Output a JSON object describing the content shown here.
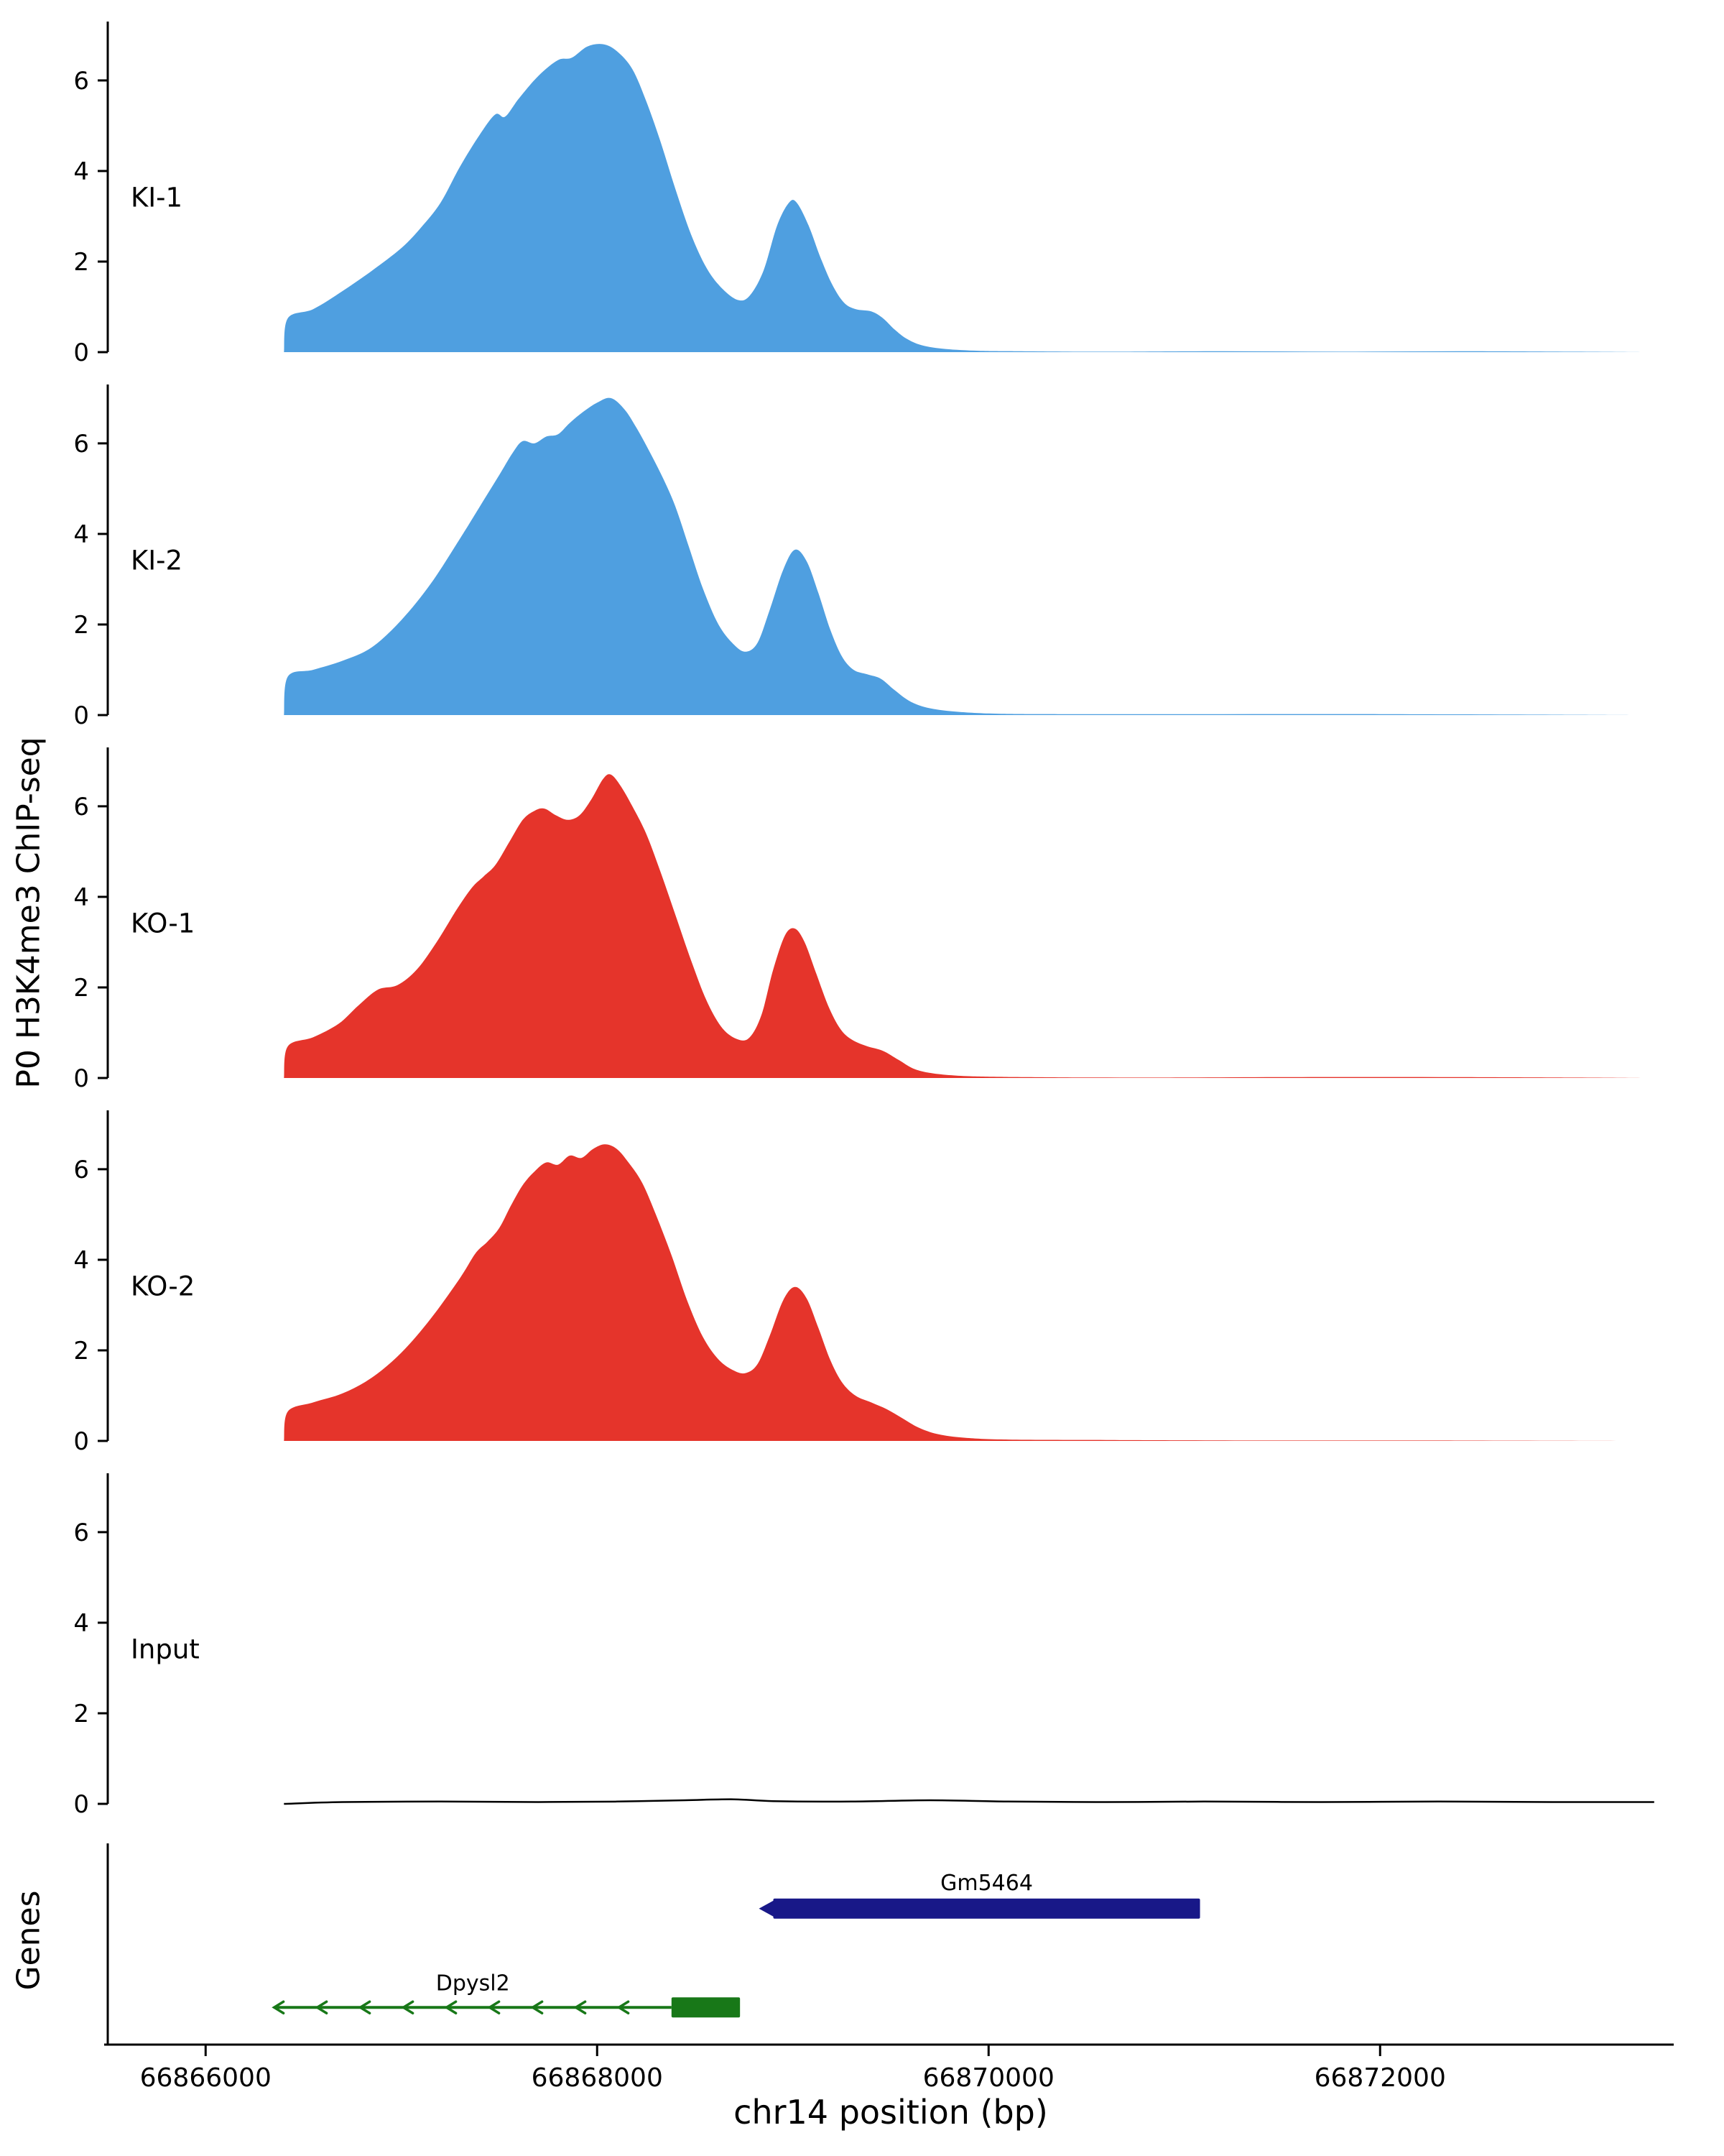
{
  "figure": {
    "ylabel": "P0 H3K4me3 ChIP-seq",
    "genes_label": "Genes",
    "xlabel": "chr14 position (bp)"
  },
  "chart_data": {
    "type": "area",
    "title": "",
    "xlabel": "chr14 position (bp)",
    "ylabel": "P0 H3K4me3 ChIP-seq",
    "x_range": [
      66865500,
      66873500
    ],
    "x_ticks": [
      66866000,
      66868000,
      66870000,
      66872000
    ],
    "y_range": [
      0,
      7.3
    ],
    "y_ticks": [
      0,
      2,
      4,
      6
    ],
    "grid": false,
    "tracks": [
      {
        "label": "KI-1",
        "color": "#4f9fe0",
        "style": "area",
        "points": [
          [
            66866400,
            0.0
          ],
          [
            66866420,
            0.75
          ],
          [
            66866550,
            0.95
          ],
          [
            66866700,
            1.35
          ],
          [
            66866850,
            1.8
          ],
          [
            66867000,
            2.3
          ],
          [
            66867100,
            2.75
          ],
          [
            66867200,
            3.3
          ],
          [
            66867300,
            4.1
          ],
          [
            66867400,
            4.8
          ],
          [
            66867480,
            5.25
          ],
          [
            66867530,
            5.2
          ],
          [
            66867600,
            5.6
          ],
          [
            66867700,
            6.1
          ],
          [
            66867800,
            6.45
          ],
          [
            66867870,
            6.5
          ],
          [
            66867950,
            6.75
          ],
          [
            66868030,
            6.8
          ],
          [
            66868100,
            6.65
          ],
          [
            66868180,
            6.25
          ],
          [
            66868250,
            5.55
          ],
          [
            66868320,
            4.7
          ],
          [
            66868400,
            3.6
          ],
          [
            66868480,
            2.6
          ],
          [
            66868560,
            1.85
          ],
          [
            66868640,
            1.4
          ],
          [
            66868720,
            1.15
          ],
          [
            66868780,
            1.25
          ],
          [
            66868850,
            1.8
          ],
          [
            66868920,
            2.8
          ],
          [
            66868980,
            3.3
          ],
          [
            66869020,
            3.3
          ],
          [
            66869080,
            2.8
          ],
          [
            66869140,
            2.1
          ],
          [
            66869200,
            1.5
          ],
          [
            66869260,
            1.1
          ],
          [
            66869320,
            0.95
          ],
          [
            66869400,
            0.9
          ],
          [
            66869460,
            0.75
          ],
          [
            66869520,
            0.5
          ],
          [
            66869580,
            0.3
          ],
          [
            66869660,
            0.15
          ],
          [
            66869780,
            0.07
          ],
          [
            66869950,
            0.03
          ],
          [
            66870150,
            0.02
          ],
          [
            66870600,
            0.01
          ],
          [
            66871200,
            0.02
          ],
          [
            66871800,
            0.01
          ],
          [
            66872400,
            0.02
          ],
          [
            66873000,
            0.01
          ],
          [
            66873350,
            0.0
          ]
        ]
      },
      {
        "label": "KI-2",
        "color": "#4f9fe0",
        "style": "area",
        "points": [
          [
            66866400,
            0.0
          ],
          [
            66866420,
            0.85
          ],
          [
            66866550,
            1.0
          ],
          [
            66866700,
            1.2
          ],
          [
            66866850,
            1.5
          ],
          [
            66867000,
            2.1
          ],
          [
            66867150,
            2.9
          ],
          [
            66867300,
            3.9
          ],
          [
            66867400,
            4.6
          ],
          [
            66867500,
            5.3
          ],
          [
            66867570,
            5.8
          ],
          [
            66867620,
            6.05
          ],
          [
            66867680,
            6.0
          ],
          [
            66867740,
            6.15
          ],
          [
            66867800,
            6.2
          ],
          [
            66867860,
            6.45
          ],
          [
            66867930,
            6.7
          ],
          [
            66868000,
            6.9
          ],
          [
            66868070,
            7.0
          ],
          [
            66868140,
            6.75
          ],
          [
            66868200,
            6.35
          ],
          [
            66868270,
            5.8
          ],
          [
            66868340,
            5.2
          ],
          [
            66868400,
            4.6
          ],
          [
            66868470,
            3.7
          ],
          [
            66868540,
            2.8
          ],
          [
            66868620,
            2.0
          ],
          [
            66868700,
            1.55
          ],
          [
            66868760,
            1.4
          ],
          [
            66868820,
            1.6
          ],
          [
            66868880,
            2.3
          ],
          [
            66868950,
            3.2
          ],
          [
            66869010,
            3.65
          ],
          [
            66869070,
            3.4
          ],
          [
            66869130,
            2.7
          ],
          [
            66869190,
            1.9
          ],
          [
            66869250,
            1.3
          ],
          [
            66869310,
            1.0
          ],
          [
            66869380,
            0.9
          ],
          [
            66869450,
            0.8
          ],
          [
            66869520,
            0.55
          ],
          [
            66869600,
            0.3
          ],
          [
            66869700,
            0.15
          ],
          [
            66869850,
            0.07
          ],
          [
            66870050,
            0.03
          ],
          [
            66870400,
            0.02
          ],
          [
            66871200,
            0.02
          ],
          [
            66872000,
            0.02
          ],
          [
            66872800,
            0.01
          ],
          [
            66873350,
            0.0
          ]
        ]
      },
      {
        "label": "KO-1",
        "color": "#e5342b",
        "style": "area",
        "points": [
          [
            66866400,
            0.0
          ],
          [
            66866420,
            0.7
          ],
          [
            66866550,
            0.9
          ],
          [
            66866680,
            1.2
          ],
          [
            66866780,
            1.6
          ],
          [
            66866880,
            1.95
          ],
          [
            66866980,
            2.05
          ],
          [
            66867080,
            2.4
          ],
          [
            66867180,
            3.0
          ],
          [
            66867280,
            3.7
          ],
          [
            66867360,
            4.2
          ],
          [
            66867420,
            4.45
          ],
          [
            66867480,
            4.7
          ],
          [
            66867550,
            5.2
          ],
          [
            66867620,
            5.7
          ],
          [
            66867680,
            5.9
          ],
          [
            66867730,
            5.95
          ],
          [
            66867790,
            5.8
          ],
          [
            66867850,
            5.7
          ],
          [
            66867910,
            5.8
          ],
          [
            66867970,
            6.15
          ],
          [
            66868030,
            6.6
          ],
          [
            66868070,
            6.7
          ],
          [
            66868120,
            6.45
          ],
          [
            66868180,
            6.0
          ],
          [
            66868250,
            5.4
          ],
          [
            66868320,
            4.6
          ],
          [
            66868400,
            3.6
          ],
          [
            66868480,
            2.6
          ],
          [
            66868560,
            1.7
          ],
          [
            66868640,
            1.1
          ],
          [
            66868720,
            0.85
          ],
          [
            66868780,
            0.9
          ],
          [
            66868840,
            1.4
          ],
          [
            66868900,
            2.4
          ],
          [
            66868960,
            3.15
          ],
          [
            66869010,
            3.3
          ],
          [
            66869060,
            3.0
          ],
          [
            66869120,
            2.3
          ],
          [
            66869180,
            1.6
          ],
          [
            66869240,
            1.1
          ],
          [
            66869300,
            0.85
          ],
          [
            66869380,
            0.7
          ],
          [
            66869460,
            0.6
          ],
          [
            66869540,
            0.4
          ],
          [
            66869620,
            0.2
          ],
          [
            66869720,
            0.1
          ],
          [
            66869900,
            0.04
          ],
          [
            66870200,
            0.02
          ],
          [
            66870800,
            0.01
          ],
          [
            66871600,
            0.02
          ],
          [
            66872300,
            0.02
          ],
          [
            66873000,
            0.01
          ],
          [
            66873350,
            0.0
          ]
        ]
      },
      {
        "label": "KO-2",
        "color": "#e5342b",
        "style": "area",
        "points": [
          [
            66866400,
            0.0
          ],
          [
            66866420,
            0.65
          ],
          [
            66866550,
            0.85
          ],
          [
            66866700,
            1.05
          ],
          [
            66866850,
            1.4
          ],
          [
            66867000,
            1.95
          ],
          [
            66867150,
            2.7
          ],
          [
            66867300,
            3.6
          ],
          [
            66867380,
            4.15
          ],
          [
            66867440,
            4.4
          ],
          [
            66867500,
            4.7
          ],
          [
            66867560,
            5.2
          ],
          [
            66867620,
            5.65
          ],
          [
            66867680,
            5.95
          ],
          [
            66867740,
            6.15
          ],
          [
            66867800,
            6.1
          ],
          [
            66867860,
            6.3
          ],
          [
            66867920,
            6.25
          ],
          [
            66867980,
            6.45
          ],
          [
            66868040,
            6.55
          ],
          [
            66868100,
            6.45
          ],
          [
            66868160,
            6.15
          ],
          [
            66868230,
            5.7
          ],
          [
            66868300,
            5.0
          ],
          [
            66868380,
            4.1
          ],
          [
            66868460,
            3.1
          ],
          [
            66868540,
            2.3
          ],
          [
            66868620,
            1.8
          ],
          [
            66868700,
            1.55
          ],
          [
            66868760,
            1.5
          ],
          [
            66868820,
            1.7
          ],
          [
            66868880,
            2.3
          ],
          [
            66868950,
            3.1
          ],
          [
            66869010,
            3.4
          ],
          [
            66869070,
            3.15
          ],
          [
            66869130,
            2.5
          ],
          [
            66869190,
            1.8
          ],
          [
            66869250,
            1.3
          ],
          [
            66869320,
            1.0
          ],
          [
            66869400,
            0.85
          ],
          [
            66869480,
            0.7
          ],
          [
            66869560,
            0.5
          ],
          [
            66869640,
            0.3
          ],
          [
            66869740,
            0.15
          ],
          [
            66869880,
            0.07
          ],
          [
            66870100,
            0.03
          ],
          [
            66870600,
            0.02
          ],
          [
            66871400,
            0.01
          ],
          [
            66872200,
            0.01
          ],
          [
            66873350,
            0.0
          ]
        ]
      },
      {
        "label": "Input",
        "color": "#000000",
        "style": "line",
        "points": [
          [
            66866400,
            0.0
          ],
          [
            66866700,
            0.04
          ],
          [
            66867200,
            0.05
          ],
          [
            66867700,
            0.04
          ],
          [
            66868100,
            0.05
          ],
          [
            66868450,
            0.08
          ],
          [
            66868700,
            0.1
          ],
          [
            66868900,
            0.06
          ],
          [
            66869300,
            0.05
          ],
          [
            66869700,
            0.08
          ],
          [
            66870100,
            0.05
          ],
          [
            66870600,
            0.04
          ],
          [
            66871100,
            0.05
          ],
          [
            66871700,
            0.04
          ],
          [
            66872300,
            0.05
          ],
          [
            66872900,
            0.04
          ],
          [
            66873400,
            0.04
          ]
        ]
      }
    ],
    "genes": {
      "label": "Genes",
      "items": [
        {
          "name": "Gm5464",
          "strand": "-",
          "color": "#181888",
          "start": 66868900,
          "end": 66871080,
          "row": 0,
          "glyph": "box"
        },
        {
          "name": "Dpysl2",
          "strand": "-",
          "color": "#187818",
          "start": 66866350,
          "end": 66868730,
          "box_start": 66868380,
          "box_end": 66868730,
          "row": 1,
          "glyph": "arrow-line-box"
        }
      ]
    }
  }
}
